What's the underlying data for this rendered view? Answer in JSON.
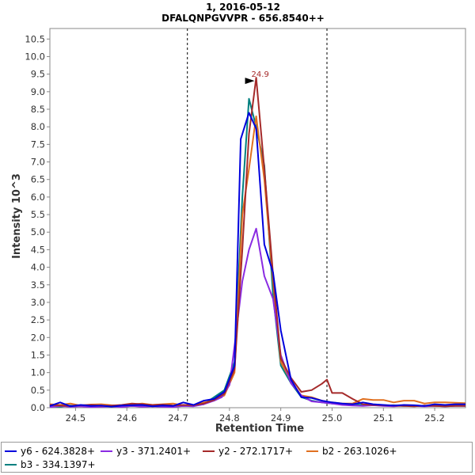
{
  "chart_data": {
    "type": "line",
    "title": "1, 2016-05-12",
    "subtitle": "DFALQNPGVVPR - 656.8540++",
    "xlabel": "Retention Time",
    "ylabel": "Intensity 10^3",
    "xlim": [
      24.45,
      25.26
    ],
    "ylim": [
      0,
      10.8
    ],
    "x_ticks": [
      "24.5",
      "24.6",
      "24.7",
      "24.8",
      "24.9",
      "25.0",
      "25.1",
      "25.2"
    ],
    "y_ticks": [
      "0.0",
      "0.5",
      "1.0",
      "1.5",
      "2.0",
      "2.5",
      "3.0",
      "3.5",
      "4.0",
      "4.5",
      "5.0",
      "5.5",
      "6.0",
      "6.5",
      "7.0",
      "7.5",
      "8.0",
      "8.5",
      "9.0",
      "9.5",
      "10.0",
      "10.5"
    ],
    "integration_bounds": [
      24.718,
      24.99
    ],
    "peak_annotation": {
      "label": "24.9",
      "x": 24.852,
      "y": 9.4
    },
    "legend_position": "bottom",
    "series": [
      {
        "name": "y6 - 624.3828+",
        "color": "#0000dd",
        "x": [
          24.45,
          24.47,
          24.49,
          24.51,
          24.53,
          24.55,
          24.57,
          24.59,
          24.61,
          24.63,
          24.65,
          24.67,
          24.69,
          24.71,
          24.73,
          24.75,
          24.77,
          24.79,
          24.81,
          24.822,
          24.838,
          24.852,
          24.868,
          24.885,
          24.9,
          24.92,
          24.94,
          24.96,
          24.98,
          25.0,
          25.02,
          25.04,
          25.06,
          25.08,
          25.1,
          25.12,
          25.14,
          25.16,
          25.18,
          25.2,
          25.22,
          25.24,
          25.26
        ],
        "values": [
          0.05,
          0.15,
          0.04,
          0.08,
          0.05,
          0.06,
          0.03,
          0.06,
          0.07,
          0.08,
          0.04,
          0.06,
          0.05,
          0.15,
          0.08,
          0.2,
          0.25,
          0.45,
          1.2,
          7.65,
          8.4,
          7.95,
          4.65,
          3.85,
          2.2,
          0.8,
          0.3,
          0.28,
          0.2,
          0.15,
          0.12,
          0.1,
          0.15,
          0.1,
          0.08,
          0.06,
          0.08,
          0.07,
          0.05,
          0.1,
          0.08,
          0.1,
          0.1
        ]
      },
      {
        "name": "y3 - 371.2401+",
        "color": "#8a2be2",
        "x": [
          24.45,
          24.47,
          24.49,
          24.51,
          24.53,
          24.55,
          24.57,
          24.59,
          24.61,
          24.63,
          24.65,
          24.67,
          24.69,
          24.71,
          24.73,
          24.75,
          24.77,
          24.785,
          24.8,
          24.812,
          24.825,
          24.838,
          24.852,
          24.868,
          24.885,
          24.9,
          24.92,
          24.94,
          24.96,
          24.98,
          25.0,
          25.02,
          25.04,
          25.06,
          25.08,
          25.1,
          25.12,
          25.14,
          25.16,
          25.18,
          25.2,
          25.22,
          25.24,
          25.26
        ],
        "values": [
          0.02,
          0.05,
          0.03,
          0.04,
          0.02,
          0.03,
          0.04,
          0.02,
          0.05,
          0.03,
          0.04,
          0.03,
          0.02,
          0.05,
          0.04,
          0.1,
          0.2,
          0.3,
          0.65,
          2.0,
          3.6,
          4.5,
          5.1,
          3.75,
          3.1,
          1.5,
          0.7,
          0.35,
          0.18,
          0.15,
          0.12,
          0.08,
          0.06,
          0.05,
          0.07,
          0.05,
          0.04,
          0.06,
          0.05,
          0.04,
          0.05,
          0.04,
          0.05,
          0.05
        ]
      },
      {
        "name": "y2 - 272.1717+",
        "color": "#a52a2a",
        "x": [
          24.45,
          24.47,
          24.49,
          24.51,
          24.53,
          24.55,
          24.57,
          24.59,
          24.61,
          24.63,
          24.65,
          24.67,
          24.69,
          24.71,
          24.73,
          24.75,
          24.77,
          24.79,
          24.81,
          24.825,
          24.838,
          24.852,
          24.868,
          24.885,
          24.9,
          24.92,
          24.94,
          24.96,
          24.98,
          24.99,
          25.0,
          25.02,
          25.04,
          25.06,
          25.08,
          25.1,
          25.12,
          25.14,
          25.16,
          25.18,
          25.2,
          25.22,
          25.24,
          25.26
        ],
        "values": [
          0.08,
          0.06,
          0.05,
          0.07,
          0.08,
          0.05,
          0.06,
          0.08,
          0.12,
          0.1,
          0.08,
          0.09,
          0.06,
          0.08,
          0.07,
          0.12,
          0.22,
          0.4,
          1.1,
          4.5,
          7.8,
          9.4,
          6.8,
          3.8,
          1.4,
          0.85,
          0.45,
          0.5,
          0.68,
          0.8,
          0.42,
          0.42,
          0.25,
          0.1,
          0.08,
          0.07,
          0.06,
          0.05,
          0.04,
          0.06,
          0.05,
          0.04,
          0.05,
          0.05
        ]
      },
      {
        "name": "b2 - 263.1026+",
        "color": "#e07020",
        "x": [
          24.45,
          24.47,
          24.49,
          24.51,
          24.53,
          24.55,
          24.57,
          24.59,
          24.61,
          24.63,
          24.65,
          24.67,
          24.69,
          24.71,
          24.73,
          24.75,
          24.77,
          24.79,
          24.81,
          24.825,
          24.838,
          24.852,
          24.868,
          24.885,
          24.9,
          24.92,
          24.94,
          24.96,
          24.98,
          25.0,
          25.02,
          25.04,
          25.06,
          25.08,
          25.1,
          25.12,
          25.14,
          25.16,
          25.18,
          25.2,
          25.22,
          25.24,
          25.26
        ],
        "values": [
          0.1,
          0.08,
          0.12,
          0.06,
          0.09,
          0.1,
          0.07,
          0.06,
          0.09,
          0.12,
          0.08,
          0.1,
          0.12,
          0.06,
          0.05,
          0.15,
          0.2,
          0.35,
          1.0,
          5.5,
          6.8,
          8.3,
          6.5,
          3.6,
          1.3,
          0.75,
          0.35,
          0.3,
          0.2,
          0.15,
          0.12,
          0.12,
          0.25,
          0.22,
          0.22,
          0.15,
          0.2,
          0.2,
          0.12,
          0.15,
          0.15,
          0.14,
          0.13
        ]
      },
      {
        "name": "b3 - 334.1397+",
        "color": "#008080",
        "x": [
          24.45,
          24.47,
          24.49,
          24.51,
          24.53,
          24.55,
          24.57,
          24.59,
          24.61,
          24.63,
          24.65,
          24.67,
          24.69,
          24.71,
          24.73,
          24.75,
          24.77,
          24.79,
          24.81,
          24.825,
          24.838,
          24.852,
          24.868,
          24.885,
          24.9,
          24.92,
          24.94,
          24.96,
          24.98,
          25.0,
          25.02,
          25.04,
          25.06,
          25.08,
          25.1,
          25.12,
          25.14,
          25.16,
          25.18,
          25.2,
          25.22,
          25.24,
          25.26
        ],
        "values": [
          0.04,
          0.03,
          0.06,
          0.05,
          0.04,
          0.05,
          0.06,
          0.03,
          0.05,
          0.04,
          0.06,
          0.05,
          0.04,
          0.05,
          0.06,
          0.1,
          0.3,
          0.5,
          1.3,
          6.0,
          8.8,
          8.0,
          6.9,
          3.2,
          1.2,
          0.7,
          0.3,
          0.2,
          0.15,
          0.12,
          0.1,
          0.1,
          0.08,
          0.07,
          0.06,
          0.07,
          0.05,
          0.06,
          0.05,
          0.06,
          0.05,
          0.06,
          0.05
        ]
      }
    ]
  }
}
